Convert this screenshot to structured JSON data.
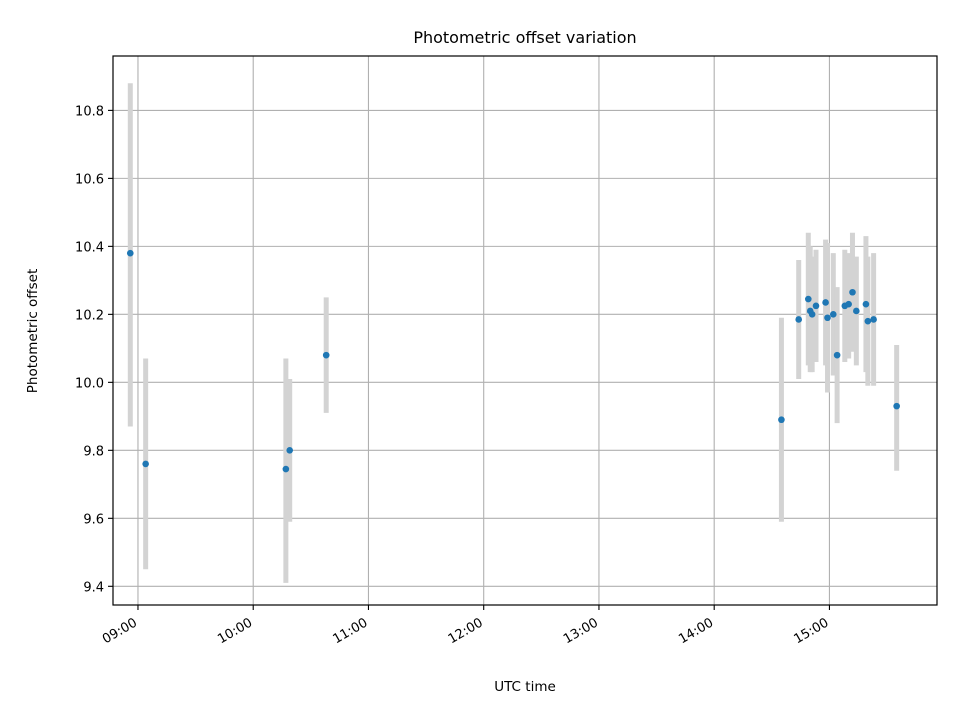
{
  "chart_data": {
    "type": "scatter",
    "title": "Photometric offset variation",
    "xlabel": "UTC time",
    "ylabel": "Photometric offset",
    "x_axis_kind": "time",
    "x_range": [
      "08:47",
      "15:56"
    ],
    "x_ticks": [
      "09:00",
      "10:00",
      "11:00",
      "12:00",
      "13:00",
      "14:00",
      "15:00"
    ],
    "ylim": [
      9.345,
      10.96
    ],
    "y_ticks": [
      9.4,
      9.6,
      9.8,
      10.0,
      10.2,
      10.4,
      10.6,
      10.8
    ],
    "grid": true,
    "legend": "none",
    "colors": {
      "points": "#1f77b4",
      "errorbars": "#d3d3d3",
      "grid": "#b0b0b0"
    },
    "points": [
      {
        "x": "08:56",
        "y": 10.38,
        "yerr": [
          9.87,
          10.88
        ]
      },
      {
        "x": "09:04",
        "y": 9.76,
        "yerr": [
          9.45,
          10.07
        ]
      },
      {
        "x": "10:17",
        "y": 9.745,
        "yerr": [
          9.41,
          10.07
        ]
      },
      {
        "x": "10:19",
        "y": 9.8,
        "yerr": [
          9.59,
          10.01
        ]
      },
      {
        "x": "10:38",
        "y": 10.08,
        "yerr": [
          9.91,
          10.25
        ]
      },
      {
        "x": "14:35",
        "y": 9.89,
        "yerr": [
          9.59,
          10.19
        ]
      },
      {
        "x": "14:44",
        "y": 10.185,
        "yerr": [
          10.01,
          10.36
        ]
      },
      {
        "x": "14:49",
        "y": 10.245,
        "yerr": [
          10.05,
          10.44
        ]
      },
      {
        "x": "14:50",
        "y": 10.21,
        "yerr": [
          10.03,
          10.4
        ]
      },
      {
        "x": "14:51",
        "y": 10.2,
        "yerr": [
          10.03,
          10.37
        ]
      },
      {
        "x": "14:53",
        "y": 10.225,
        "yerr": [
          10.06,
          10.39
        ]
      },
      {
        "x": "14:58",
        "y": 10.235,
        "yerr": [
          10.05,
          10.42
        ]
      },
      {
        "x": "14:59",
        "y": 10.19,
        "yerr": [
          9.97,
          10.41
        ]
      },
      {
        "x": "15:02",
        "y": 10.2,
        "yerr": [
          10.02,
          10.38
        ]
      },
      {
        "x": "15:04",
        "y": 10.08,
        "yerr": [
          9.88,
          10.28
        ]
      },
      {
        "x": "15:08",
        "y": 10.225,
        "yerr": [
          10.06,
          10.39
        ]
      },
      {
        "x": "15:10",
        "y": 10.23,
        "yerr": [
          10.07,
          10.38
        ]
      },
      {
        "x": "15:12",
        "y": 10.265,
        "yerr": [
          10.09,
          10.44
        ]
      },
      {
        "x": "15:14",
        "y": 10.21,
        "yerr": [
          10.05,
          10.37
        ]
      },
      {
        "x": "15:19",
        "y": 10.23,
        "yerr": [
          10.03,
          10.43
        ]
      },
      {
        "x": "15:20",
        "y": 10.18,
        "yerr": [
          9.99,
          10.37
        ]
      },
      {
        "x": "15:23",
        "y": 10.185,
        "yerr": [
          9.99,
          10.38
        ]
      },
      {
        "x": "15:35",
        "y": 9.93,
        "yerr": [
          9.74,
          10.11
        ]
      }
    ]
  }
}
